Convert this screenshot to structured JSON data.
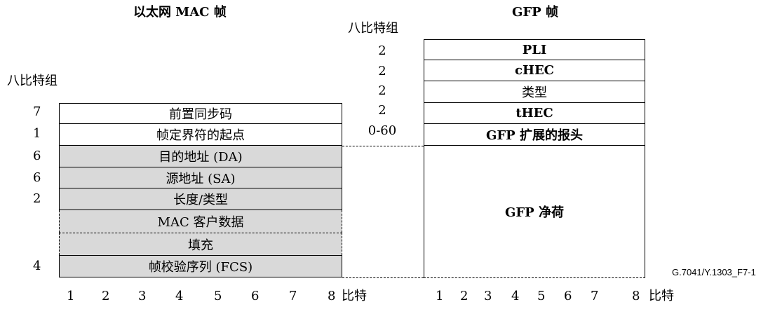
{
  "mac_frame": {
    "title": "以太网 MAC 帧",
    "octets_label": "八比特组",
    "fields": [
      {
        "octets": "7",
        "label": "前置同步码"
      },
      {
        "octets": "1",
        "label": "帧定界符的起点"
      },
      {
        "octets": "6",
        "label": "目的地址 (DA)"
      },
      {
        "octets": "6",
        "label": "源地址 (SA)"
      },
      {
        "octets": "2",
        "label": "长度/类型"
      },
      {
        "octets": "",
        "label": "MAC 客户数据"
      },
      {
        "octets": "",
        "label": "填充"
      },
      {
        "octets": "4",
        "label": "帧校验序列 (FCS)"
      }
    ],
    "bit_numbers": [
      "1",
      "2",
      "3",
      "4",
      "5",
      "6",
      "7",
      "8"
    ],
    "bits_label": "比特"
  },
  "gfp_frame": {
    "title": "GFP 帧",
    "octets_label": "八比特组",
    "fields": [
      {
        "octets": "2",
        "label": "PLI"
      },
      {
        "octets": "2",
        "label": "cHEC"
      },
      {
        "octets": "2",
        "label": "类型"
      },
      {
        "octets": "2",
        "label": "tHEC"
      },
      {
        "octets": "0-60",
        "label": "GFP 扩展的报头"
      },
      {
        "octets": "",
        "label": "GFP 净荷"
      }
    ],
    "bit_numbers": [
      "1",
      "2",
      "3",
      "4",
      "5",
      "6",
      "7",
      "8"
    ],
    "bits_label": "比特"
  },
  "figure_id": "G.7041/Y.1303_F7-1"
}
